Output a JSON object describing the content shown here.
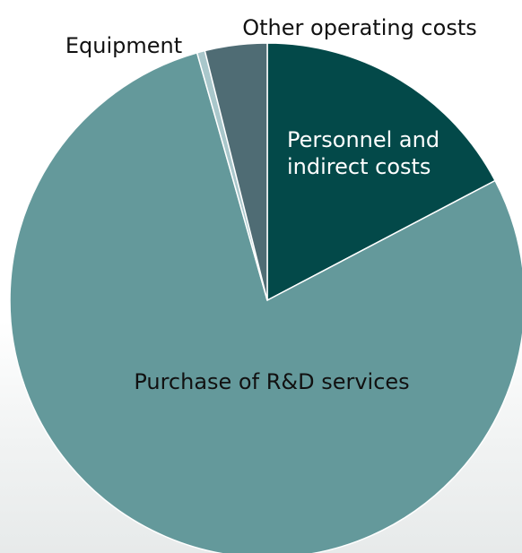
{
  "chart_data": {
    "type": "pie",
    "title": "",
    "slices": [
      {
        "label": "Personnel and indirect costs",
        "value": 17.3,
        "color": "#034949",
        "label_color": "#ffffff",
        "label_lines": [
          "Personnel and",
          "indirect costs"
        ]
      },
      {
        "label": "Purchase of R&D services",
        "value": 78.3,
        "color": "#64999b",
        "label_color": "#111111",
        "label_lines": [
          "Purchase of R&D services"
        ]
      },
      {
        "label": "Equipment",
        "value": 0.5,
        "color": "#a9c7cb",
        "label_color": "#111111",
        "label_lines": [
          "Equipment"
        ]
      },
      {
        "label": "Other operating costs",
        "value": 3.9,
        "color": "#4f6c74",
        "label_color": "#111111",
        "label_lines": [
          "Other operating costs"
        ]
      }
    ],
    "start_angle_deg": 0,
    "direction": "clockwise",
    "legend": "none"
  }
}
